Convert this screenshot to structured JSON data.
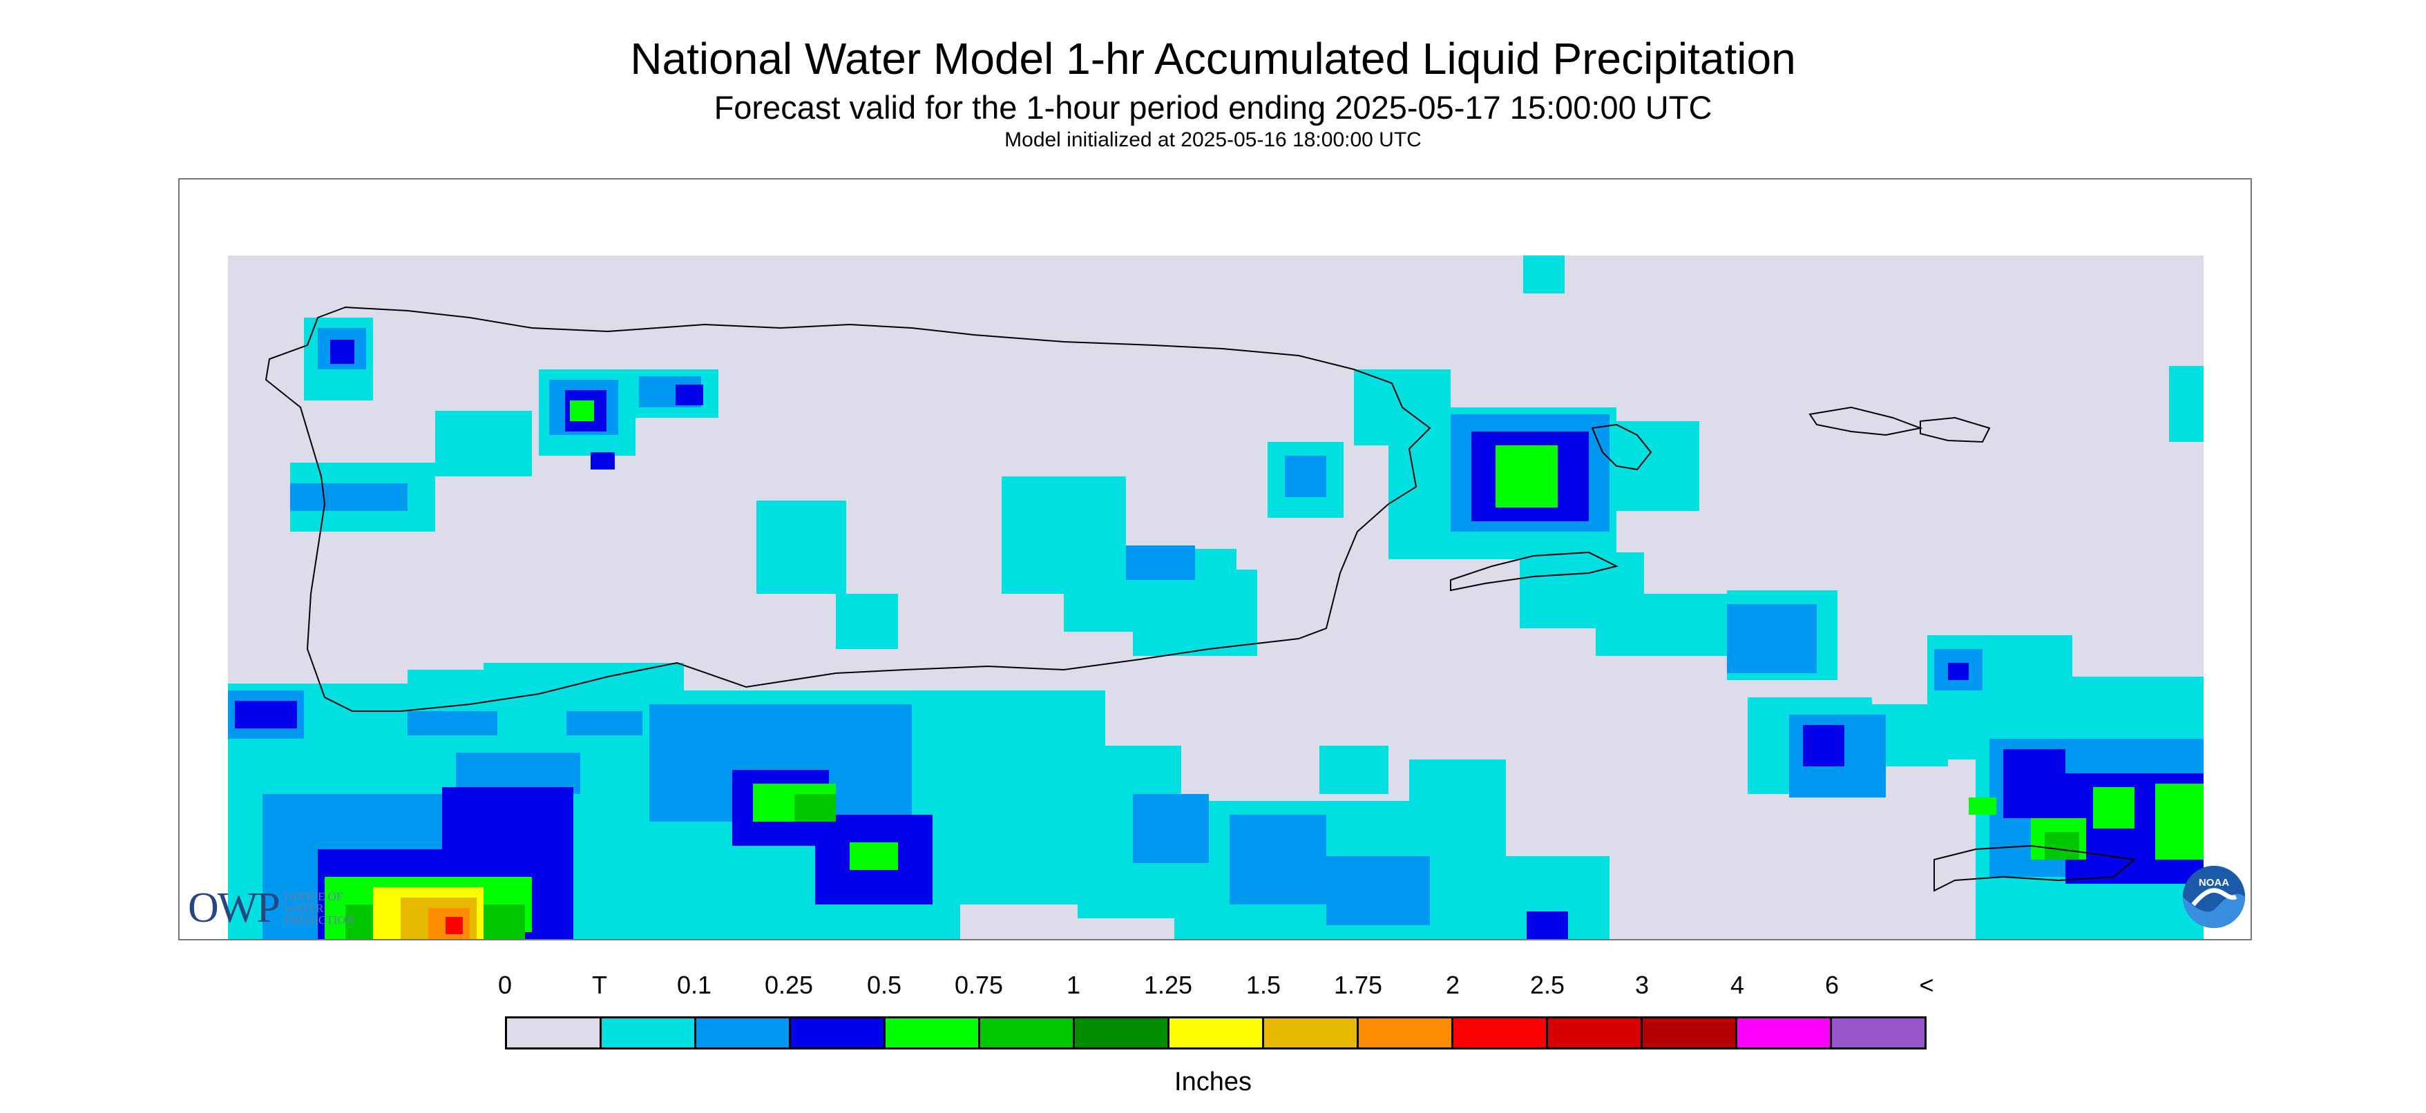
{
  "header": {
    "title": "National Water Model 1-hr Accumulated Liquid Precipitation",
    "subtitle": "Forecast valid for the 1-hour period ending 2025-05-17 15:00:00 UTC",
    "init_line": "Model initialized at 2025-05-16 18:00:00 UTC"
  },
  "map": {
    "region_shown": "Puerto Rico and U.S. Virgin Islands",
    "background_color": "#dcdceb"
  },
  "legend": {
    "labels": [
      "0",
      "T",
      "0.1",
      "0.25",
      "0.5",
      "0.75",
      "1",
      "1.25",
      "1.5",
      "1.75",
      "2",
      "2.5",
      "3",
      "4",
      "6",
      "<"
    ],
    "colors": [
      "#dcdceb",
      "#00e0e0",
      "#0098f0",
      "#0000ea",
      "#00ff00",
      "#00c800",
      "#008c00",
      "#ffff00",
      "#e6b800",
      "#ff8c00",
      "#ff0000",
      "#d60000",
      "#b40000",
      "#ff00ff",
      "#9955cc"
    ],
    "units": "Inches"
  },
  "logos": {
    "owp": {
      "letters": "OWP",
      "caption": "OFFICE OF WATER PREDICTION"
    },
    "noaa": {
      "letters": "NOAA"
    }
  }
}
